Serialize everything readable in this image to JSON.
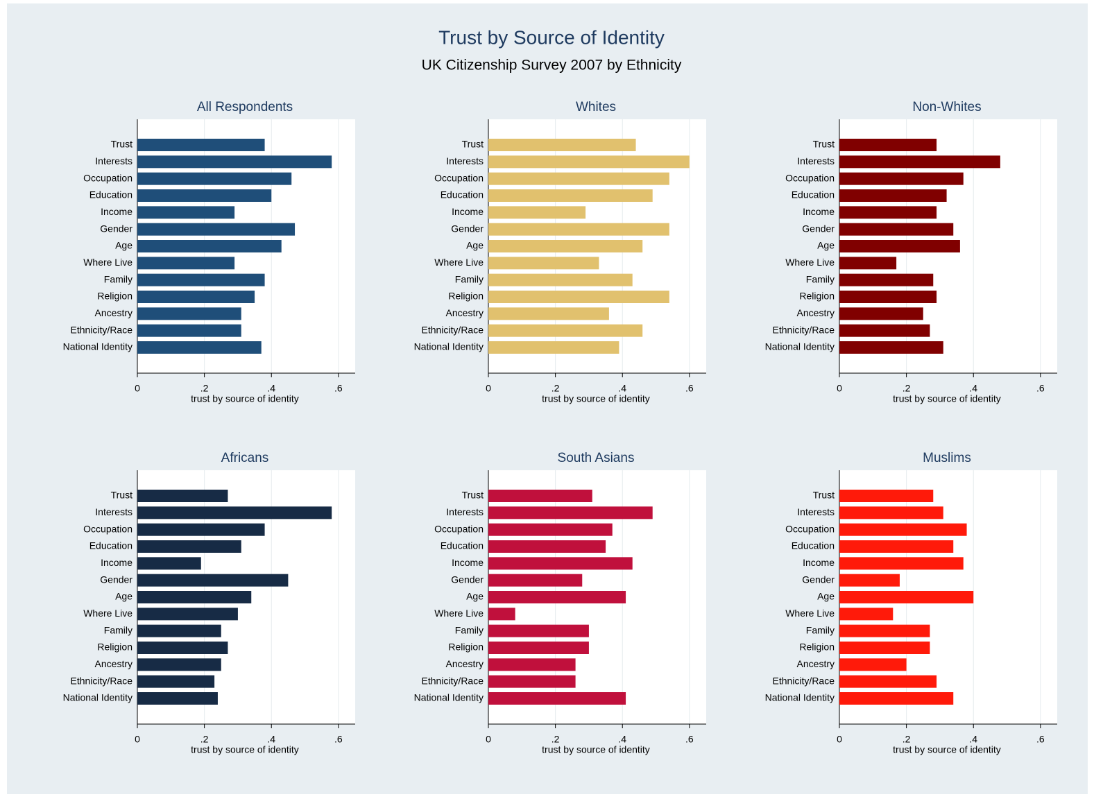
{
  "title": "Trust by Source of Identity",
  "subtitle": "UK Citizenship Survey 2007 by Ethnicity",
  "chart_data": [
    {
      "type": "bar",
      "orientation": "horizontal",
      "title": "All Respondents",
      "xlabel": "trust by source of identity",
      "categories": [
        "Trust",
        "Interests",
        "Occupation",
        "Education",
        "Income",
        "Gender",
        "Age",
        "Where Live",
        "Family",
        "Religion",
        "Ancestry",
        "Ethnicity/Race",
        "National Identity"
      ],
      "values": [
        0.38,
        0.58,
        0.46,
        0.4,
        0.29,
        0.47,
        0.43,
        0.29,
        0.38,
        0.35,
        0.31,
        0.31,
        0.37
      ],
      "color": "#1f4e79",
      "xlim": [
        0,
        0.65
      ],
      "xticks": [
        0,
        {
          "value": 0.2,
          "label": ".2"
        },
        {
          "value": 0.4,
          "label": ".4"
        },
        {
          "value": 0.6,
          "label": ".6"
        }
      ],
      "grid": true
    },
    {
      "type": "bar",
      "orientation": "horizontal",
      "title": "Whites",
      "xlabel": "trust by source of identity",
      "categories": [
        "Trust",
        "Interests",
        "Occupation",
        "Education",
        "Income",
        "Gender",
        "Age",
        "Where Live",
        "Family",
        "Religion",
        "Ancestry",
        "Ethnicity/Race",
        "National Identity"
      ],
      "values": [
        0.44,
        0.6,
        0.54,
        0.49,
        0.29,
        0.54,
        0.46,
        0.33,
        0.43,
        0.54,
        0.36,
        0.46,
        0.39
      ],
      "color": "#e1c16e",
      "xlim": [
        0,
        0.65
      ],
      "xticks": [
        0,
        {
          "value": 0.2,
          "label": ".2"
        },
        {
          "value": 0.4,
          "label": ".4"
        },
        {
          "value": 0.6,
          "label": ".6"
        }
      ],
      "grid": true
    },
    {
      "type": "bar",
      "orientation": "horizontal",
      "title": "Non-Whites",
      "xlabel": "trust by source of identity",
      "categories": [
        "Trust",
        "Interests",
        "Occupation",
        "Education",
        "Income",
        "Gender",
        "Age",
        "Where Live",
        "Family",
        "Religion",
        "Ancestry",
        "Ethnicity/Race",
        "National Identity"
      ],
      "values": [
        0.29,
        0.48,
        0.37,
        0.32,
        0.29,
        0.34,
        0.36,
        0.17,
        0.28,
        0.29,
        0.25,
        0.27,
        0.31
      ],
      "color": "#800000",
      "xlim": [
        0,
        0.65
      ],
      "xticks": [
        0,
        {
          "value": 0.2,
          "label": ".2"
        },
        {
          "value": 0.4,
          "label": ".4"
        },
        {
          "value": 0.6,
          "label": ".6"
        }
      ],
      "grid": true
    },
    {
      "type": "bar",
      "orientation": "horizontal",
      "title": "Africans",
      "xlabel": "trust by source of identity",
      "categories": [
        "Trust",
        "Interests",
        "Occupation",
        "Education",
        "Income",
        "Gender",
        "Age",
        "Where Live",
        "Family",
        "Religion",
        "Ancestry",
        "Ethnicity/Race",
        "National Identity"
      ],
      "values": [
        0.27,
        0.58,
        0.38,
        0.31,
        0.19,
        0.45,
        0.34,
        0.3,
        0.25,
        0.27,
        0.25,
        0.23,
        0.24
      ],
      "color": "#172b45",
      "xlim": [
        0,
        0.65
      ],
      "xticks": [
        0,
        {
          "value": 0.2,
          "label": ".2"
        },
        {
          "value": 0.4,
          "label": ".4"
        },
        {
          "value": 0.6,
          "label": ".6"
        }
      ],
      "grid": true
    },
    {
      "type": "bar",
      "orientation": "horizontal",
      "title": "South Asians",
      "xlabel": "trust by source of identity",
      "categories": [
        "Trust",
        "Interests",
        "Occupation",
        "Education",
        "Income",
        "Gender",
        "Age",
        "Where Live",
        "Family",
        "Religion",
        "Ancestry",
        "Ethnicity/Race",
        "National Identity"
      ],
      "values": [
        0.31,
        0.49,
        0.37,
        0.35,
        0.43,
        0.28,
        0.41,
        0.08,
        0.3,
        0.3,
        0.26,
        0.26,
        0.41
      ],
      "color": "#c0103c",
      "xlim": [
        0,
        0.65
      ],
      "xticks": [
        0,
        {
          "value": 0.2,
          "label": ".2"
        },
        {
          "value": 0.4,
          "label": ".4"
        },
        {
          "value": 0.6,
          "label": ".6"
        }
      ],
      "grid": true
    },
    {
      "type": "bar",
      "orientation": "horizontal",
      "title": "Muslims",
      "xlabel": "trust by source of identity",
      "categories": [
        "Trust",
        "Interests",
        "Occupation",
        "Education",
        "Income",
        "Gender",
        "Age",
        "Where Live",
        "Family",
        "Religion",
        "Ancestry",
        "Ethnicity/Race",
        "National Identity"
      ],
      "values": [
        0.28,
        0.31,
        0.38,
        0.34,
        0.37,
        0.18,
        0.4,
        0.16,
        0.27,
        0.27,
        0.2,
        0.29,
        0.34
      ],
      "color": "#ff1a0a",
      "xlim": [
        0,
        0.65
      ],
      "xticks": [
        0,
        {
          "value": 0.2,
          "label": ".2"
        },
        {
          "value": 0.4,
          "label": ".4"
        },
        {
          "value": 0.6,
          "label": ".6"
        }
      ],
      "grid": true
    }
  ]
}
